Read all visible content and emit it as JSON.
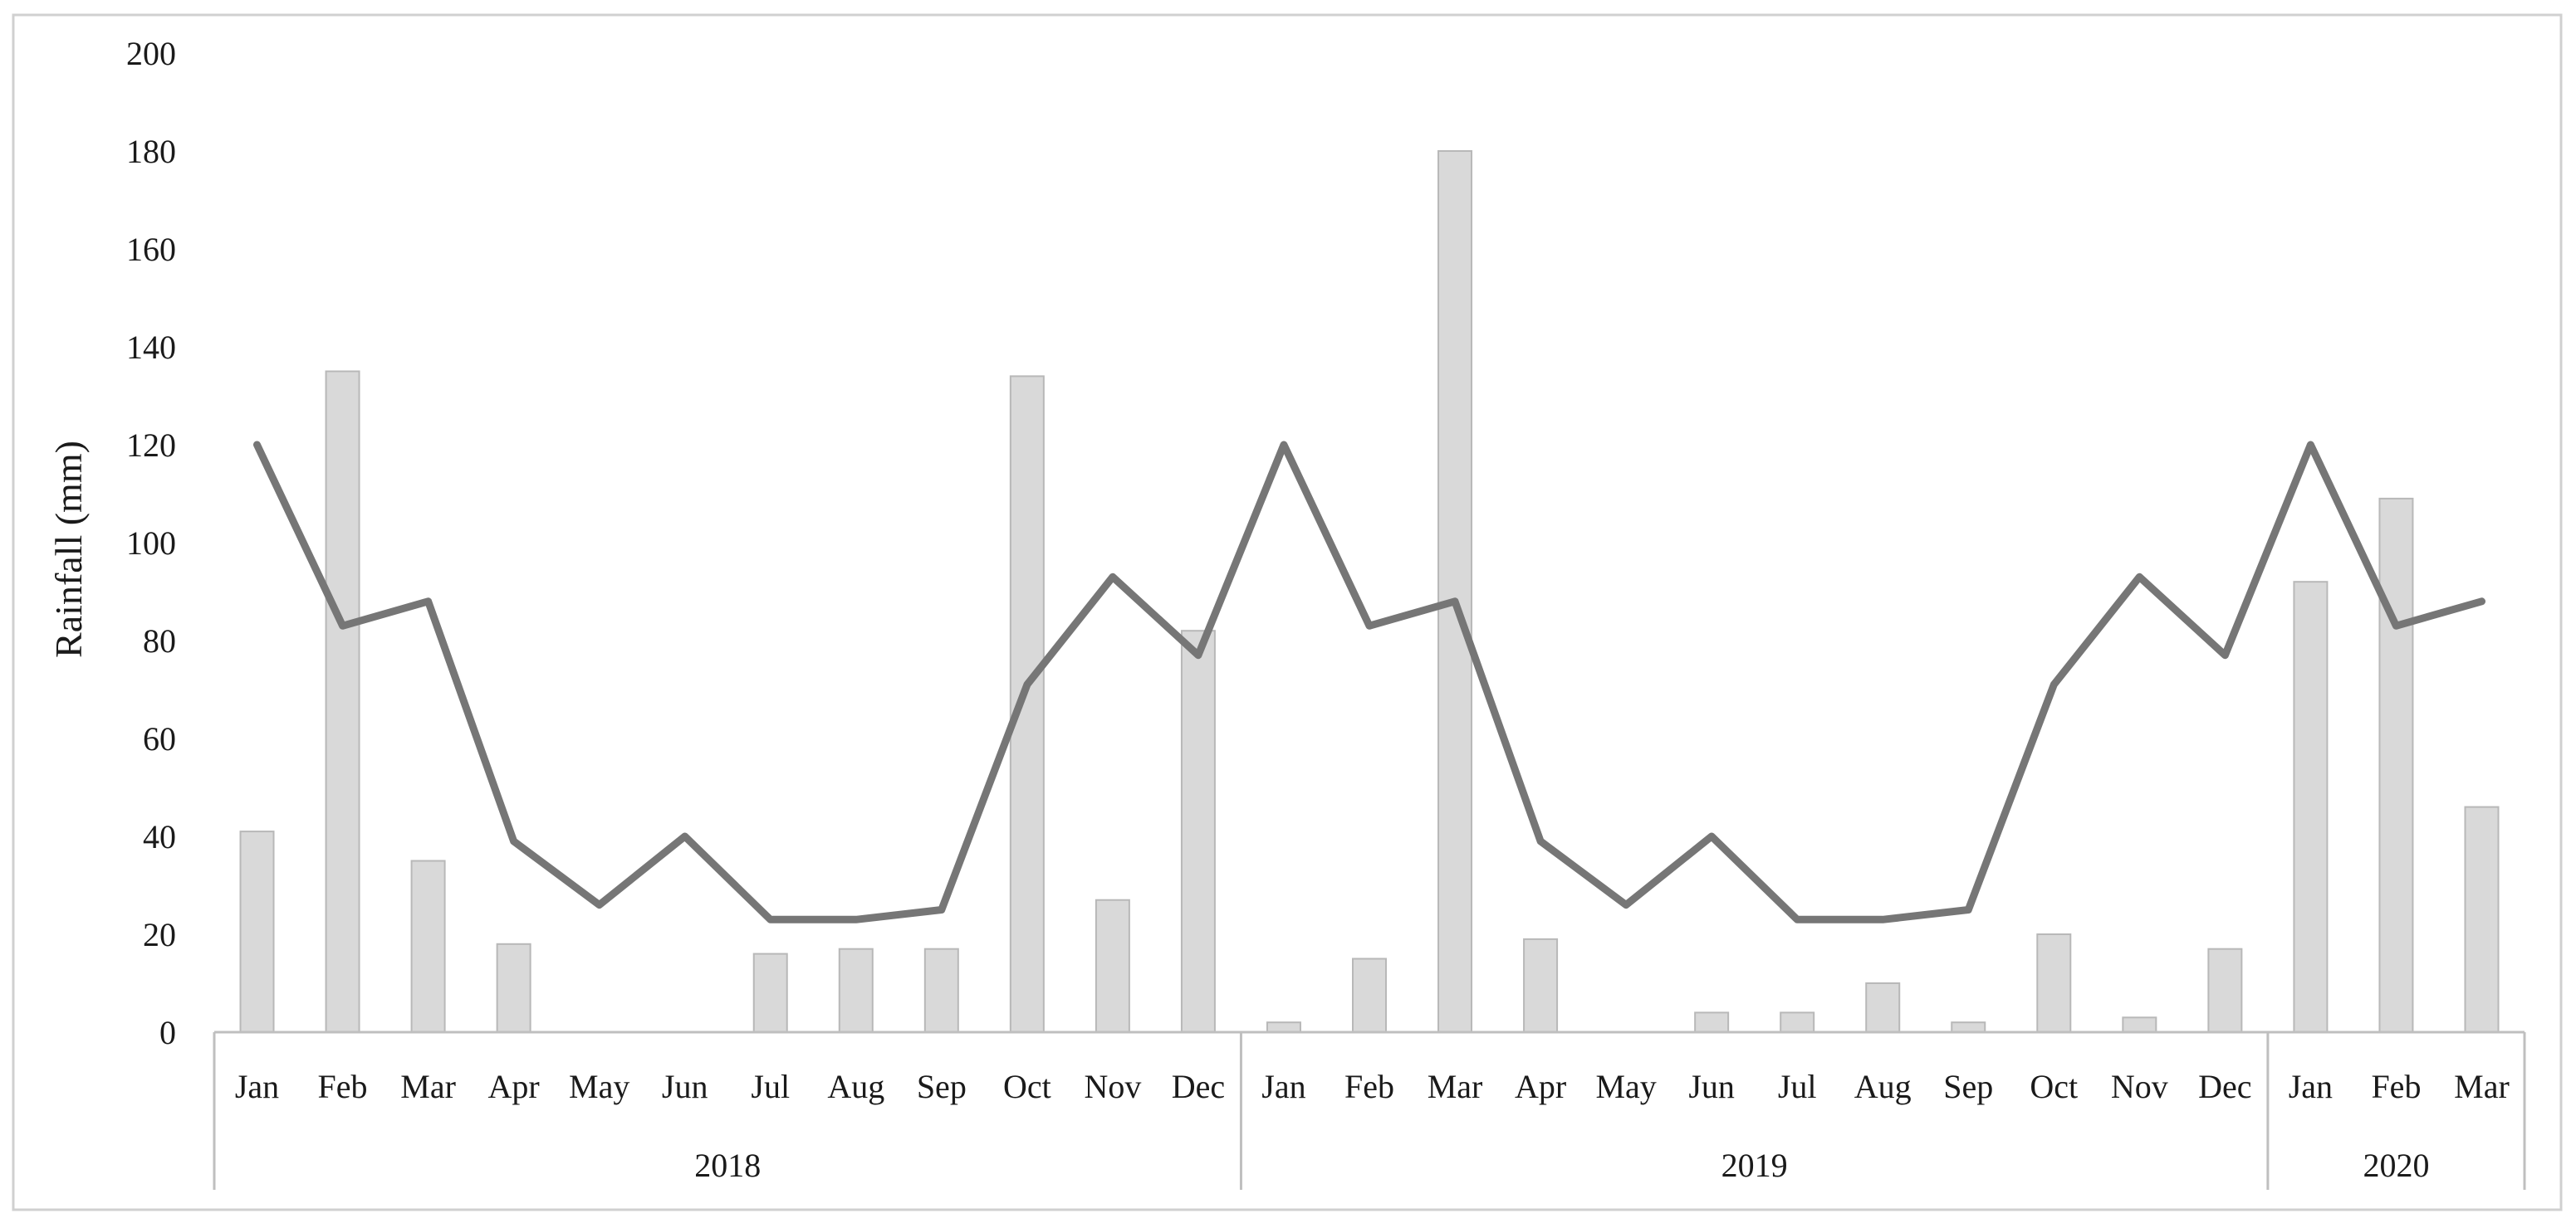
{
  "chart_data": {
    "type": "bar+line",
    "title": "",
    "xlabel": "",
    "ylabel": "Rainfall (mm)",
    "ylim": [
      0,
      200
    ],
    "yticks": [
      0,
      20,
      40,
      60,
      80,
      100,
      120,
      140,
      160,
      180,
      200
    ],
    "grid": false,
    "legend": "none",
    "categories": [
      "Jan",
      "Feb",
      "Mar",
      "Apr",
      "May",
      "Jun",
      "Jul",
      "Aug",
      "Sep",
      "Oct",
      "Nov",
      "Dec",
      "Jan",
      "Feb",
      "Mar",
      "Apr",
      "May",
      "Jun",
      "Jul",
      "Aug",
      "Sep",
      "Oct",
      "Nov",
      "Dec",
      "Jan",
      "Feb",
      "Mar"
    ],
    "groups": [
      {
        "label": "2018",
        "count": 12
      },
      {
        "label": "2019",
        "count": 12
      },
      {
        "label": "2020",
        "count": 3
      }
    ],
    "bar_series": {
      "type": "bar",
      "color": "#d9d9d9",
      "values": [
        41,
        135,
        35,
        18,
        0,
        0,
        16,
        17,
        17,
        134,
        27,
        82,
        2,
        15,
        180,
        19,
        0,
        4,
        4,
        10,
        2,
        20,
        3,
        17,
        92,
        109,
        46
      ]
    },
    "line_series": {
      "type": "line",
      "color": "#767676",
      "values": [
        120,
        83,
        88,
        39,
        26,
        40,
        23,
        23,
        25,
        71,
        93,
        77,
        120,
        83,
        88,
        39,
        26,
        40,
        23,
        23,
        25,
        71,
        93,
        77,
        120,
        83,
        88
      ]
    }
  }
}
